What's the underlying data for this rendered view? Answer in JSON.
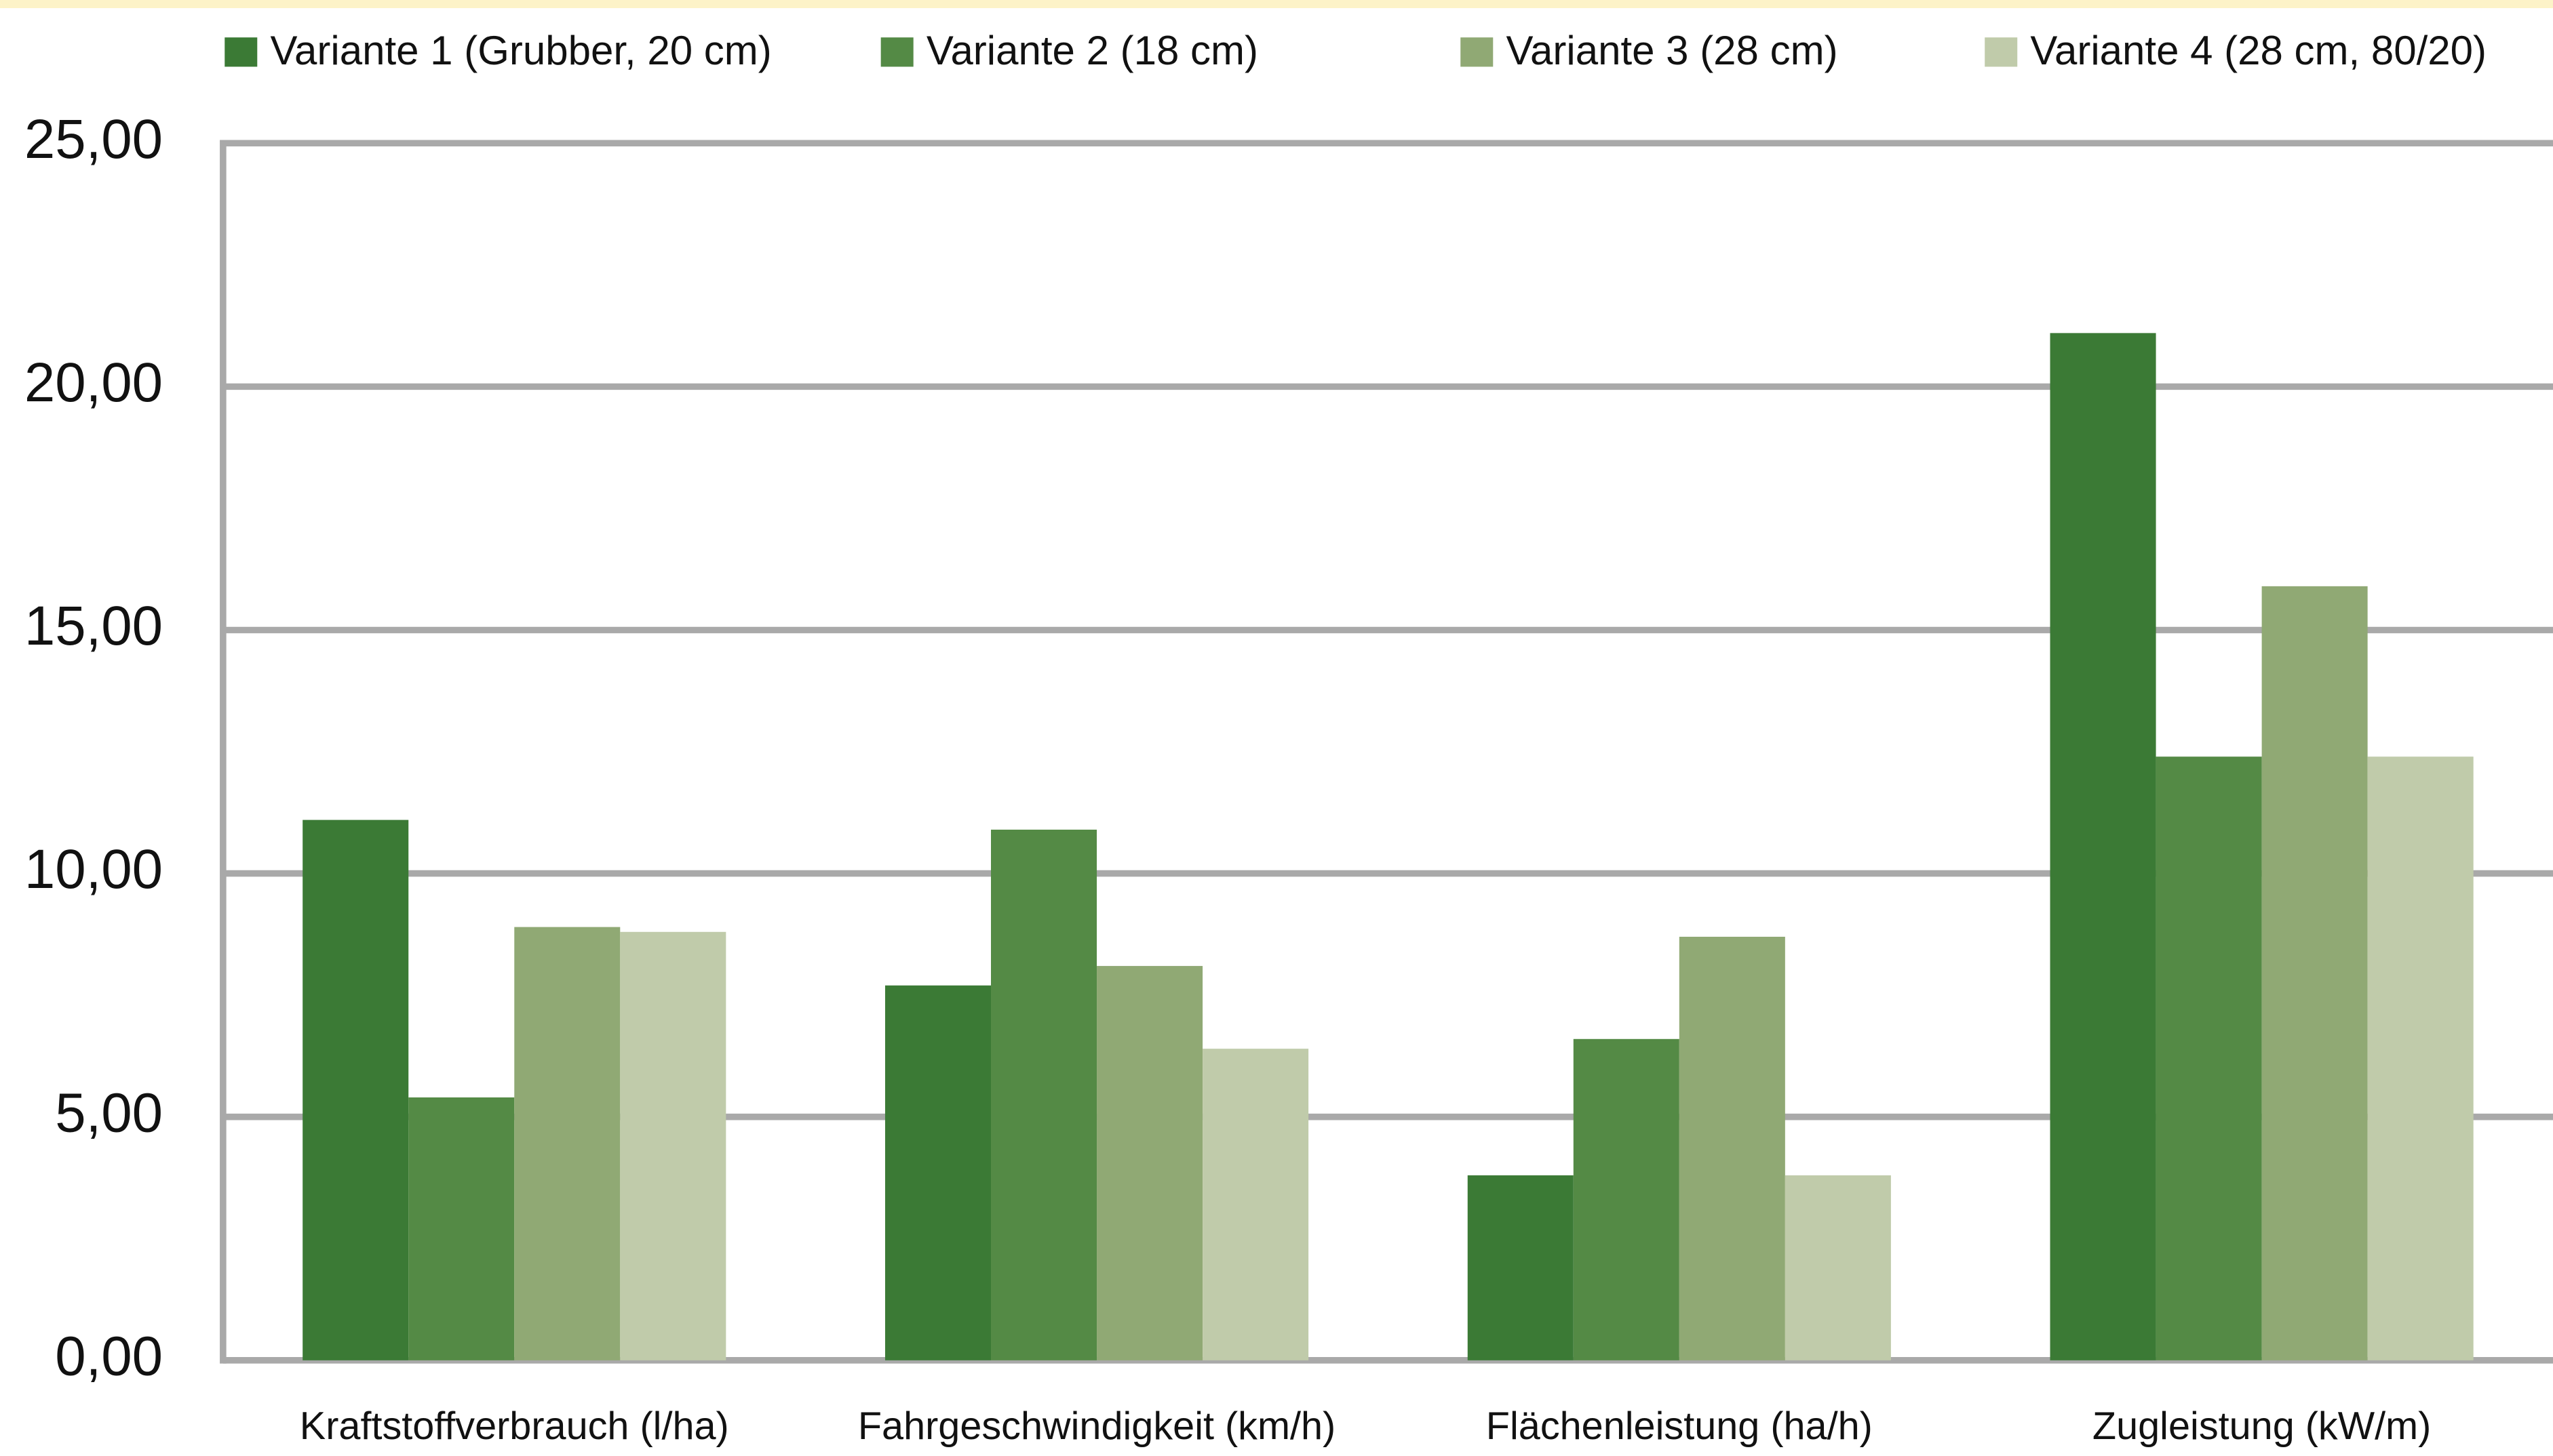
{
  "chart_data": {
    "type": "bar",
    "categories": [
      "Kraftstoffverbrauch (l/ha)",
      "Fahrgeschwindigkeit (km/h)",
      "Flächenleistung (ha/h)",
      "Zugleistung (kW/m)"
    ],
    "series": [
      {
        "name": "Variante 1 (Grubber,  20 cm)",
        "color": "#3b7a35",
        "values": [
          11.1,
          7.7,
          3.8,
          21.1
        ]
      },
      {
        "name": "Variante 2 (18 cm)",
        "color": "#548a45",
        "values": [
          5.4,
          10.9,
          6.6,
          12.4
        ]
      },
      {
        "name": "Variante 3 (28 cm)",
        "color": "#90a974",
        "values": [
          8.9,
          8.1,
          8.7,
          15.9
        ]
      },
      {
        "name": "Variante 4 (28 cm, 80/20)",
        "color": "#c0cbaa",
        "values": [
          8.8,
          6.4,
          3.8,
          12.4
        ]
      }
    ],
    "ylim": [
      0,
      25
    ],
    "yticks": [
      {
        "value": 0,
        "label": "0,00"
      },
      {
        "value": 5,
        "label": "5,00"
      },
      {
        "value": 10,
        "label": "10,00"
      },
      {
        "value": 15,
        "label": "15,00"
      },
      {
        "value": 20,
        "label": "20,00"
      },
      {
        "value": 25,
        "label": "25,00"
      }
    ],
    "grid": true
  }
}
